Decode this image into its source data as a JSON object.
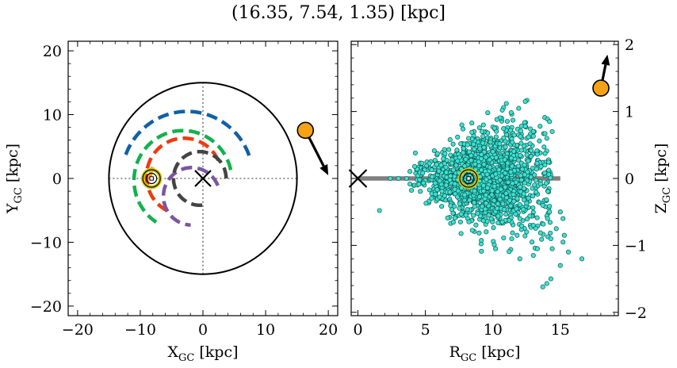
{
  "title": "(16.35, 7.54, 1.35) [kpc]",
  "chart_data": [
    {
      "type": "scatter",
      "name": "xy-panel",
      "xlabel": "X",
      "xlabel_sub": "GC",
      "xlabel_unit": " [kpc]",
      "ylabel": "Y",
      "ylabel_sub": "GC",
      "ylabel_unit": " [kpc]",
      "xlim": [
        -21.5,
        21.5
      ],
      "ylim": [
        -21.5,
        21.5
      ],
      "xticks": [
        -20,
        -10,
        0,
        10,
        20
      ],
      "xtick_labels": [
        "−20",
        "−10",
        "0",
        "10",
        "20"
      ],
      "yticks": [
        -20,
        -10,
        0,
        10,
        20
      ],
      "ytick_labels": [
        "−20",
        "−10",
        "0",
        "10",
        "20"
      ],
      "boundary_circle_radius": 15,
      "galactic_center": [
        0,
        0
      ],
      "sun_position": [
        -8.2,
        0
      ],
      "object_position": [
        16.35,
        7.54
      ],
      "object_arrow_end": [
        20.0,
        0.5
      ],
      "object_color": "#f5a315",
      "arms": [
        {
          "color": "#1060a8",
          "radius": 10.5,
          "center": [
            -2.5,
            0
          ],
          "start_deg": 20,
          "end_deg": 162
        },
        {
          "color": "#12b24d",
          "radius": 7.8,
          "center": [
            -3.2,
            -0.3
          ],
          "start_deg": 12,
          "end_deg": 238
        },
        {
          "color": "#f03a0f",
          "radius": 6.0,
          "center": [
            -3.0,
            0.3
          ],
          "start_deg": 25,
          "end_deg": 252
        },
        {
          "color": "#f5a315",
          "radius": 4.2,
          "center": [
            -4.2,
            0.0
          ],
          "start_deg": 155,
          "end_deg": 188
        },
        {
          "color": "#7a56a0",
          "radius": 4.5,
          "center": [
            -1.8,
            -2.8
          ],
          "start_deg": 22,
          "end_deg": 268
        },
        {
          "color": "#444444",
          "radius": 4.2,
          "center": [
            -0.5,
            0.0
          ],
          "start_deg": 0,
          "end_deg": 282
        }
      ]
    },
    {
      "type": "scatter",
      "name": "rz-panel",
      "xlabel": "R",
      "xlabel_sub": "GC",
      "xlabel_unit": " [kpc]",
      "ylabel": "Z",
      "ylabel_sub": "GC",
      "ylabel_unit": " [kpc]",
      "xlim": [
        -0.5,
        19.3
      ],
      "ylim": [
        -2.05,
        2.05
      ],
      "xticks": [
        0,
        5,
        10,
        15
      ],
      "xtick_labels": [
        "0",
        "5",
        "10",
        "15"
      ],
      "yticks": [
        -2,
        -1,
        0,
        1,
        2
      ],
      "ytick_labels": [
        "−2",
        "−1",
        "0",
        "1",
        "2"
      ],
      "disk_line": [
        0,
        15,
        0
      ],
      "galactic_center": [
        0,
        0
      ],
      "sun_position": [
        8.2,
        0
      ],
      "object_position": [
        18.01,
        1.35
      ],
      "object_arrow_end": [
        18.5,
        1.85
      ],
      "object_color": "#f5a315",
      "cluster_color": "#40e0d0",
      "cluster_edge": "#0a5a55",
      "cluster_center_r": 9.5,
      "cluster_spread_r": 2.2,
      "cluster_spread_z": 0.28,
      "cluster_count": 1600,
      "outliers": [
        [
          1.6,
          -0.48
        ],
        [
          2.4,
          0.0
        ],
        [
          3.0,
          0.0
        ],
        [
          3.6,
          0.0
        ],
        [
          4.2,
          0.18
        ],
        [
          4.8,
          0.08
        ],
        [
          7.7,
          0.8
        ],
        [
          8.2,
          0.6
        ],
        [
          9.3,
          0.8
        ],
        [
          10.3,
          0.88
        ],
        [
          10.8,
          1.06
        ],
        [
          11.0,
          1.12
        ],
        [
          12.4,
          1.15
        ],
        [
          10.7,
          1.02
        ],
        [
          9.2,
          0.7
        ],
        [
          14.2,
          0.85
        ],
        [
          14.4,
          0.7
        ],
        [
          14.0,
          0.6
        ],
        [
          15.0,
          -0.5
        ],
        [
          15.2,
          -0.6
        ],
        [
          14.7,
          -0.75
        ],
        [
          15.3,
          -0.85
        ],
        [
          15.2,
          -0.95
        ],
        [
          15.6,
          -1.1
        ],
        [
          16.6,
          -1.2
        ],
        [
          15.0,
          -1.3
        ],
        [
          14.3,
          -1.5
        ],
        [
          13.0,
          -1.15
        ],
        [
          13.7,
          -1.62
        ],
        [
          14.0,
          -1.57
        ],
        [
          12.0,
          -1.2
        ],
        [
          11.4,
          -0.9
        ],
        [
          10.2,
          -1.05
        ],
        [
          12.9,
          -0.95
        ],
        [
          13.0,
          -0.7
        ],
        [
          14.2,
          -0.5
        ],
        [
          14.4,
          -1.05
        ],
        [
          13.7,
          -0.4
        ],
        [
          12.5,
          -0.8
        ],
        [
          11.8,
          -0.85
        ],
        [
          12.0,
          -0.6
        ],
        [
          10.7,
          -0.65
        ],
        [
          7.6,
          -0.65
        ],
        [
          8.0,
          -0.55
        ],
        [
          9.7,
          -0.55
        ],
        [
          13.3,
          -1.05
        ],
        [
          14.3,
          -0.9
        ],
        [
          13.5,
          0.78
        ],
        [
          13.0,
          0.7
        ],
        [
          12.4,
          0.78
        ]
      ]
    }
  ]
}
